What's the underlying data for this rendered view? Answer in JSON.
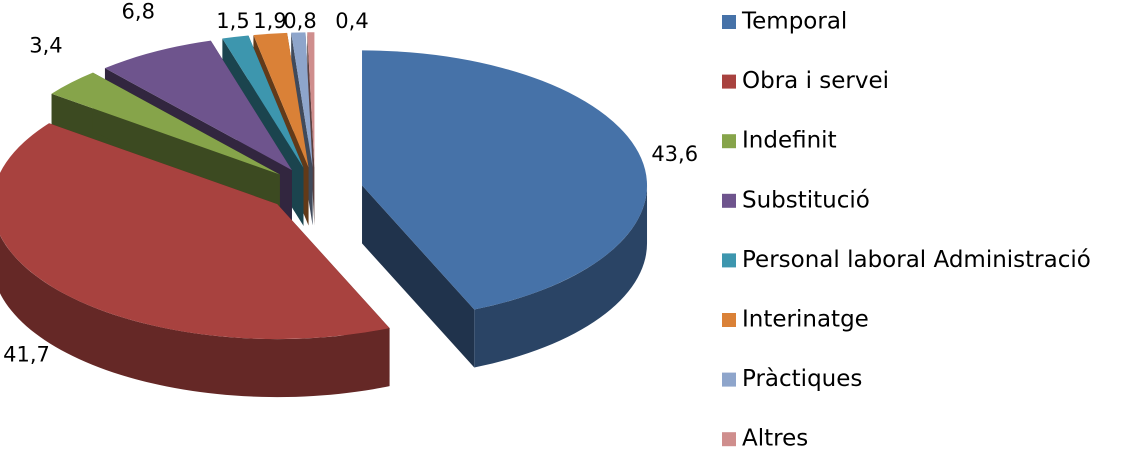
{
  "chart_data": {
    "type": "pie3d",
    "categories": [
      "Temporal",
      "Obra i servei",
      "Indefinit",
      "Substitució",
      "Personal laboral Administració",
      "Interinatge",
      "Pràctiques",
      "Altres"
    ],
    "values": [
      43.6,
      41.7,
      3.4,
      6.8,
      1.5,
      1.9,
      0.8,
      0.4
    ],
    "value_labels": [
      "43,6",
      "41,7",
      "3,4",
      "6,8",
      "1,5",
      "1,9",
      "0,8",
      "0,4"
    ],
    "colors": [
      "#4672a8",
      "#a8423f",
      "#86a44a",
      "#6e548d",
      "#3d96ae",
      "#da8137",
      "#8ea5cb",
      "#cf8e8d"
    ],
    "legend": "right"
  }
}
